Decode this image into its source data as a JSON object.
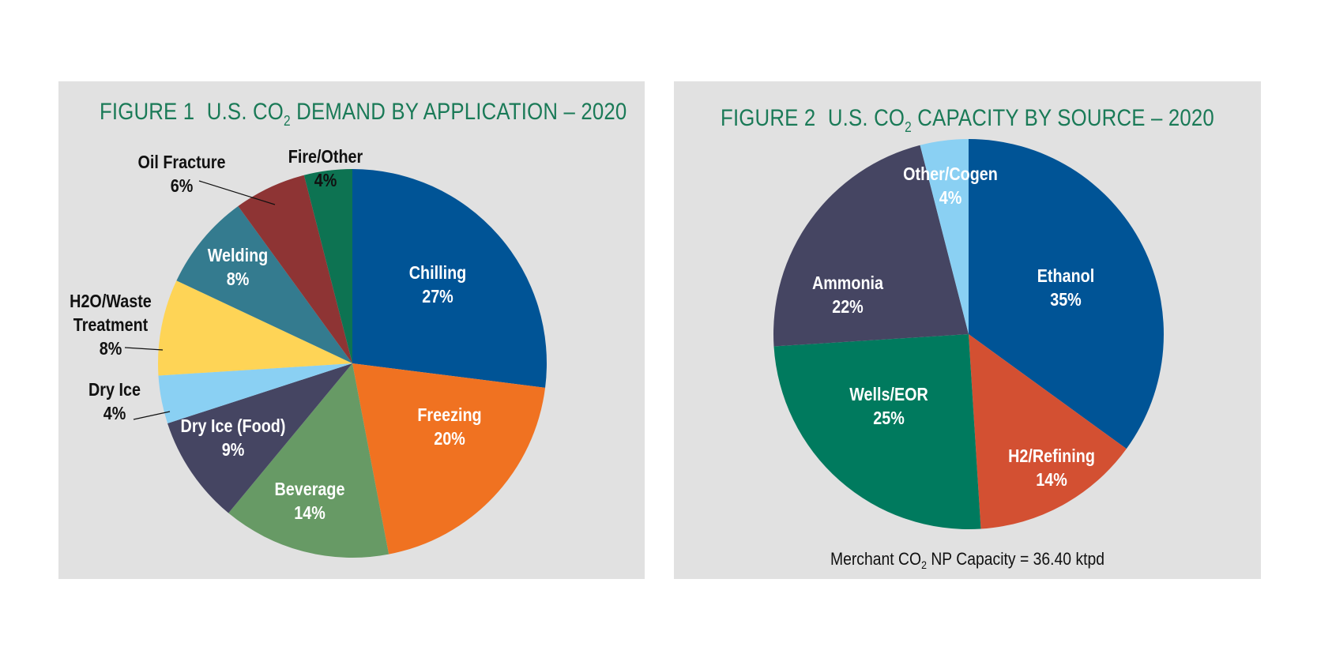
{
  "chart_data": [
    {
      "type": "pie",
      "figure_label": "FIGURE 1",
      "title_pre": "U.S. CO",
      "title_sub": "2",
      "title_post": " DEMAND BY APPLICATION – 2020",
      "slices": [
        {
          "label": "Chilling",
          "value": 27,
          "value_text": "27%",
          "color": "#005496"
        },
        {
          "label": "Freezing",
          "value": 20,
          "value_text": "20%",
          "color": "#f07221"
        },
        {
          "label": "Beverage",
          "value": 14,
          "value_text": "14%",
          "color": "#679a65"
        },
        {
          "label": "Dry Ice (Food)",
          "value": 9,
          "value_text": "9%",
          "color": "#454562"
        },
        {
          "label": "Dry Ice",
          "value": 4,
          "value_text": "4%",
          "color": "#8ad0f3"
        },
        {
          "label": "H2O/Waste Treatment",
          "label_lines": [
            "H2O/Waste",
            "Treatment"
          ],
          "value": 8,
          "value_text": "8%",
          "color": "#fed456"
        },
        {
          "label": "Welding",
          "value": 8,
          "value_text": "8%",
          "color": "#347b8f"
        },
        {
          "label": "Oil Fracture",
          "value": 6,
          "value_text": "6%",
          "color": "#8e3434"
        },
        {
          "label": "Fire/Other",
          "value": 4,
          "value_text": "4%",
          "color": "#0d7352"
        }
      ]
    },
    {
      "type": "pie",
      "figure_label": "FIGURE 2",
      "title_pre": "U.S. CO",
      "title_sub": "2",
      "title_post": " CAPACITY BY SOURCE – 2020",
      "slices": [
        {
          "label": "Ethanol",
          "value": 35,
          "value_text": "35%",
          "color": "#005496"
        },
        {
          "label": "H2/Refining",
          "value": 14,
          "value_text": "14%",
          "color": "#d35032"
        },
        {
          "label": "Wells/EOR",
          "value": 25,
          "value_text": "25%",
          "color": "#007a5e"
        },
        {
          "label": "Ammonia",
          "value": 22,
          "value_text": "22%",
          "color": "#454562"
        },
        {
          "label": "Other/Cogen",
          "value": 4,
          "value_text": "4%",
          "color": "#8ad0f3"
        }
      ],
      "footnote": {
        "pre": "Merchant CO",
        "sub": "2",
        "post": " NP Capacity =  36.40 ktpd"
      }
    }
  ]
}
